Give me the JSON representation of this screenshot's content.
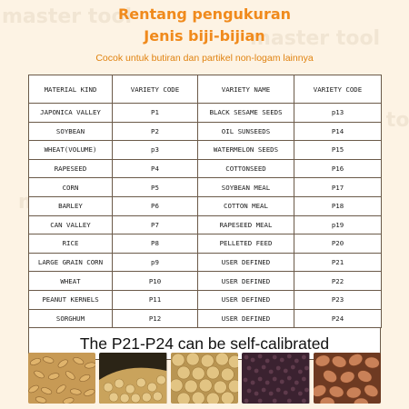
{
  "header": {
    "title": "Rentang pengukuran",
    "subtitle_heading": "Jenis biji-bijian",
    "description": "Cocok untuk butiran dan partikel non-logam lainnya"
  },
  "watermark": "master tool",
  "table": {
    "headers": [
      "MATERIAL KIND",
      "VARIETY CODE",
      "VARIETY NAME",
      "VARIETY CODE"
    ],
    "rows": [
      [
        "JAPONICA VALLEY",
        "P1",
        "BLACK SESAME SEEDS",
        "p13"
      ],
      [
        "SOYBEAN",
        "P2",
        "OIL SUNSEEDS",
        "P14"
      ],
      [
        "WHEAT(VOLUME)",
        "p3",
        "WATERMELON SEEDS",
        "P15"
      ],
      [
        "RAPESEED",
        "P4",
        "COTTONSEED",
        "P16"
      ],
      [
        "CORN",
        "P5",
        "SOYBEAN MEAL",
        "P17"
      ],
      [
        "BARLEY",
        "P6",
        "COTTON MEAL",
        "P18"
      ],
      [
        "CAN VALLEY",
        "P7",
        "RAPESEED MEAL",
        "p19"
      ],
      [
        "RICE",
        "P8",
        "PELLETED FEED",
        "P20"
      ],
      [
        "LARGE GRAIN CORN",
        "p9",
        "USER DEFINED",
        "P21"
      ],
      [
        "WHEAT",
        "P10",
        "USER DEFINED",
        "P22"
      ],
      [
        "PEANUT KERNELS",
        "P11",
        "USER DEFINED",
        "P23"
      ],
      [
        "SORGHUM",
        "P12",
        "USER DEFINED",
        "P24"
      ]
    ],
    "footer": "The P21-P24 can be self-calibrated"
  },
  "photos": [
    {
      "name": "wheat-grains-photo"
    },
    {
      "name": "soybeans-photo"
    },
    {
      "name": "soybeans-closeup-photo"
    },
    {
      "name": "rapeseed-photo"
    },
    {
      "name": "peanut-kernels-photo"
    }
  ],
  "colors": {
    "accent": "#f08a1c",
    "background": "#fdf3e4",
    "border": "#6b5a49"
  }
}
